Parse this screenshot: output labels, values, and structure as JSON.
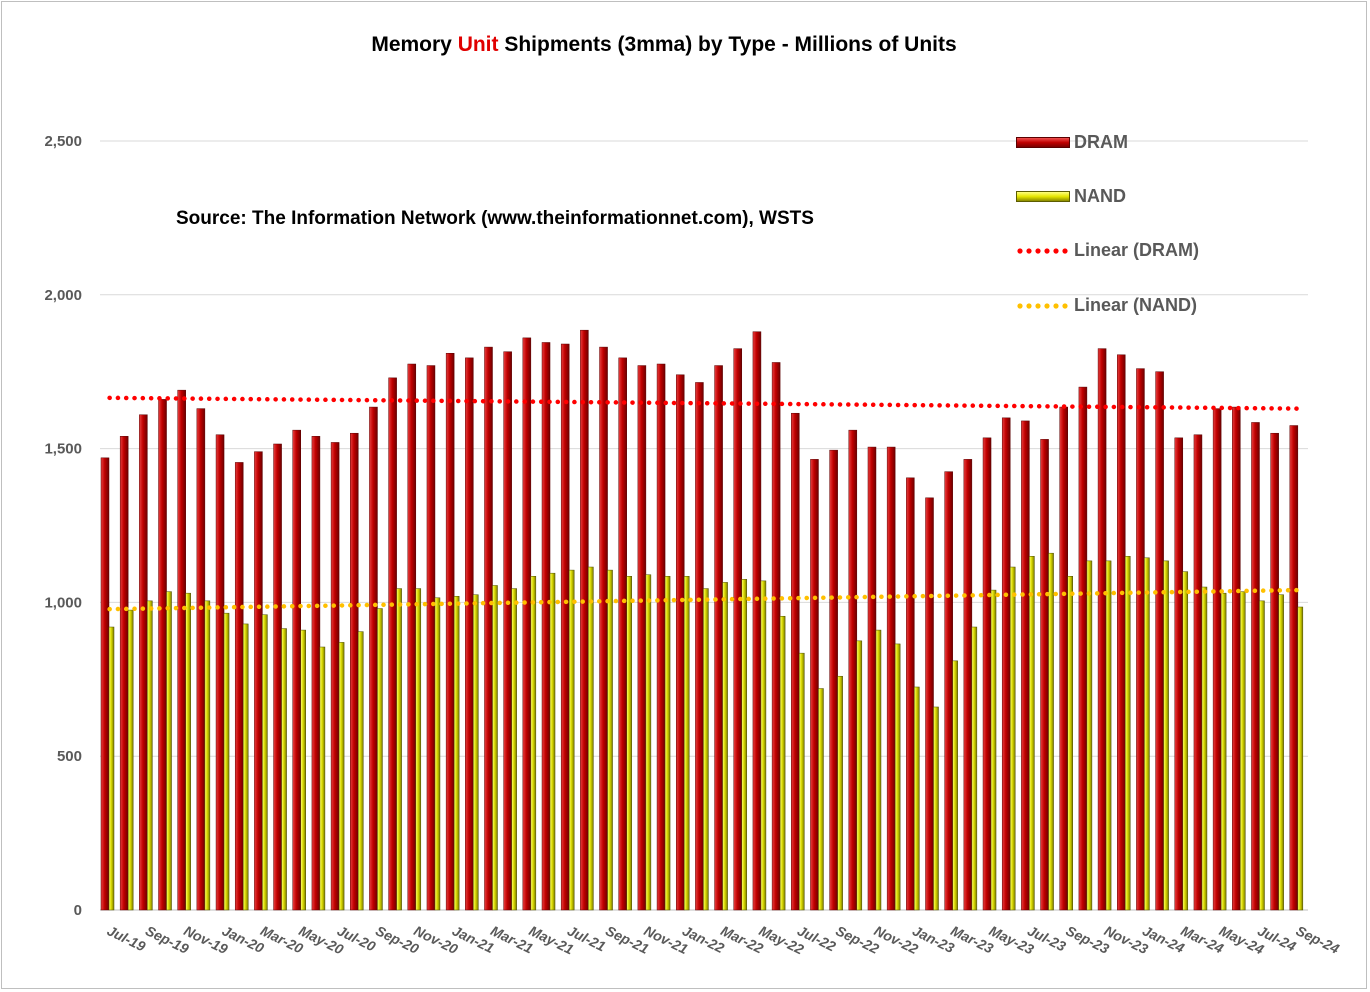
{
  "chart_data": {
    "type": "bar",
    "title_parts": [
      "Memory ",
      "Unit",
      " Shipments (3mma) by Type - Millions of Units"
    ],
    "subtitle": "Source: The Information Network (www.theinformationnet.com), WSTS",
    "ylim": [
      0,
      2500
    ],
    "yticks": [
      "0",
      "500",
      "1,000",
      "1,500",
      "2,000",
      "2,500"
    ],
    "ytick_values": [
      0,
      500,
      1000,
      1500,
      2000,
      2500
    ],
    "xtick_labels": [
      "Jul-19",
      "Sep-19",
      "Nov-19",
      "Jan-20",
      "Mar-20",
      "May-20",
      "Jul-20",
      "Sep-20",
      "Nov-20",
      "Jan-21",
      "Mar-21",
      "May-21",
      "Jul-21",
      "Sep-21",
      "Nov-21",
      "Jan-22",
      "Mar-22",
      "May-22",
      "Jul-22",
      "Sep-22",
      "Nov-22",
      "Jan-23",
      "Mar-23",
      "May-23",
      "Jul-23",
      "Sep-23",
      "Nov-23",
      "Jan-24",
      "Mar-24",
      "May-24",
      "Jul-24",
      "Sep-24"
    ],
    "legend": [
      "DRAM",
      "NAND",
      "Linear (DRAM)",
      "Linear (NAND)"
    ],
    "grid": true,
    "series": [
      {
        "name": "DRAM",
        "color": "#c00000",
        "values": [
          1470,
          1540,
          1610,
          1660,
          1690,
          1630,
          1545,
          1455,
          1490,
          1515,
          1560,
          1540,
          1520,
          1550,
          1635,
          1730,
          1775,
          1770,
          1810,
          1795,
          1830,
          1815,
          1860,
          1845,
          1840,
          1885,
          1830,
          1795,
          1770,
          1775,
          1740,
          1715,
          1770,
          1825,
          1880,
          1780,
          1615,
          1465,
          1495,
          1560,
          1505,
          1505,
          1405,
          1340,
          1425,
          1465,
          1535,
          1600,
          1590,
          1530,
          1635,
          1700,
          1825,
          1805,
          1760,
          1750,
          1535,
          1545,
          1630,
          1635,
          1585,
          1550,
          1575
        ]
      },
      {
        "name": "NAND",
        "color": "#e6e600",
        "values": [
          920,
          975,
          1005,
          1035,
          1030,
          1005,
          965,
          930,
          960,
          915,
          910,
          855,
          870,
          905,
          980,
          1045,
          1045,
          1015,
          1020,
          1025,
          1055,
          1045,
          1085,
          1095,
          1105,
          1115,
          1105,
          1085,
          1090,
          1085,
          1085,
          1045,
          1065,
          1075,
          1070,
          955,
          835,
          720,
          760,
          875,
          910,
          865,
          725,
          660,
          810,
          920,
          1040,
          1115,
          1150,
          1160,
          1085,
          1135,
          1135,
          1150,
          1145,
          1135,
          1100,
          1050,
          1030,
          1035,
          1005,
          1025,
          985
        ]
      }
    ],
    "trendlines": [
      {
        "name": "Linear (DRAM)",
        "color": "#ff0000",
        "start": 1665,
        "end": 1630
      },
      {
        "name": "Linear (NAND)",
        "color": "#ffc000",
        "start": 978,
        "end": 1040
      }
    ]
  }
}
